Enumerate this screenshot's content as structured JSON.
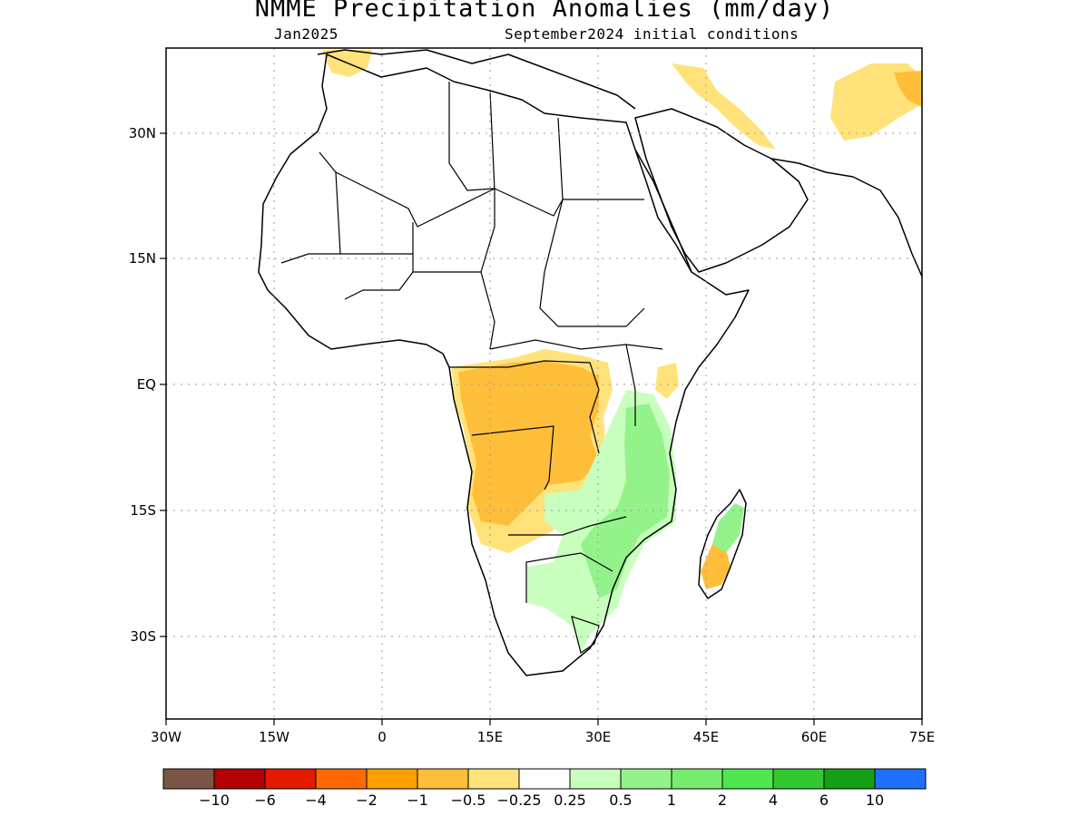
{
  "title": "NMME Precipitation Anomalies (mm/day)",
  "valid_month": "Jan2025",
  "initial_conditions": "September2024 initial conditions",
  "lat_ticks": [
    "30N",
    "15N",
    "EQ",
    "15S",
    "30S"
  ],
  "lon_ticks": [
    "30W",
    "15W",
    "0",
    "15E",
    "30E",
    "45E",
    "60E",
    "75E"
  ],
  "colorbar": {
    "colors": [
      "#7a5546",
      "#b30000",
      "#e31a00",
      "#ff6a00",
      "#ffa000",
      "#ffbe3a",
      "#ffe27a",
      "#ffffff",
      "#c8ffbe",
      "#94f28a",
      "#78ec6e",
      "#50e650",
      "#32c832",
      "#14a014",
      "#2070ff"
    ],
    "labels": [
      "−10",
      "−6",
      "−4",
      "−2",
      "−1",
      "−0.5",
      "−0.25",
      "0.25",
      "0.5",
      "1",
      "2",
      "4",
      "6",
      "10"
    ]
  },
  "map": {
    "extent": {
      "lon_min": -30,
      "lon_max": 75,
      "lat_min": -40,
      "lat_max": 40
    },
    "dry_color": "#ffbe3a",
    "slightly_dry_color": "#ffe27a",
    "wet_color": "#94f28a",
    "slightly_wet_color": "#c8ffbe"
  }
}
